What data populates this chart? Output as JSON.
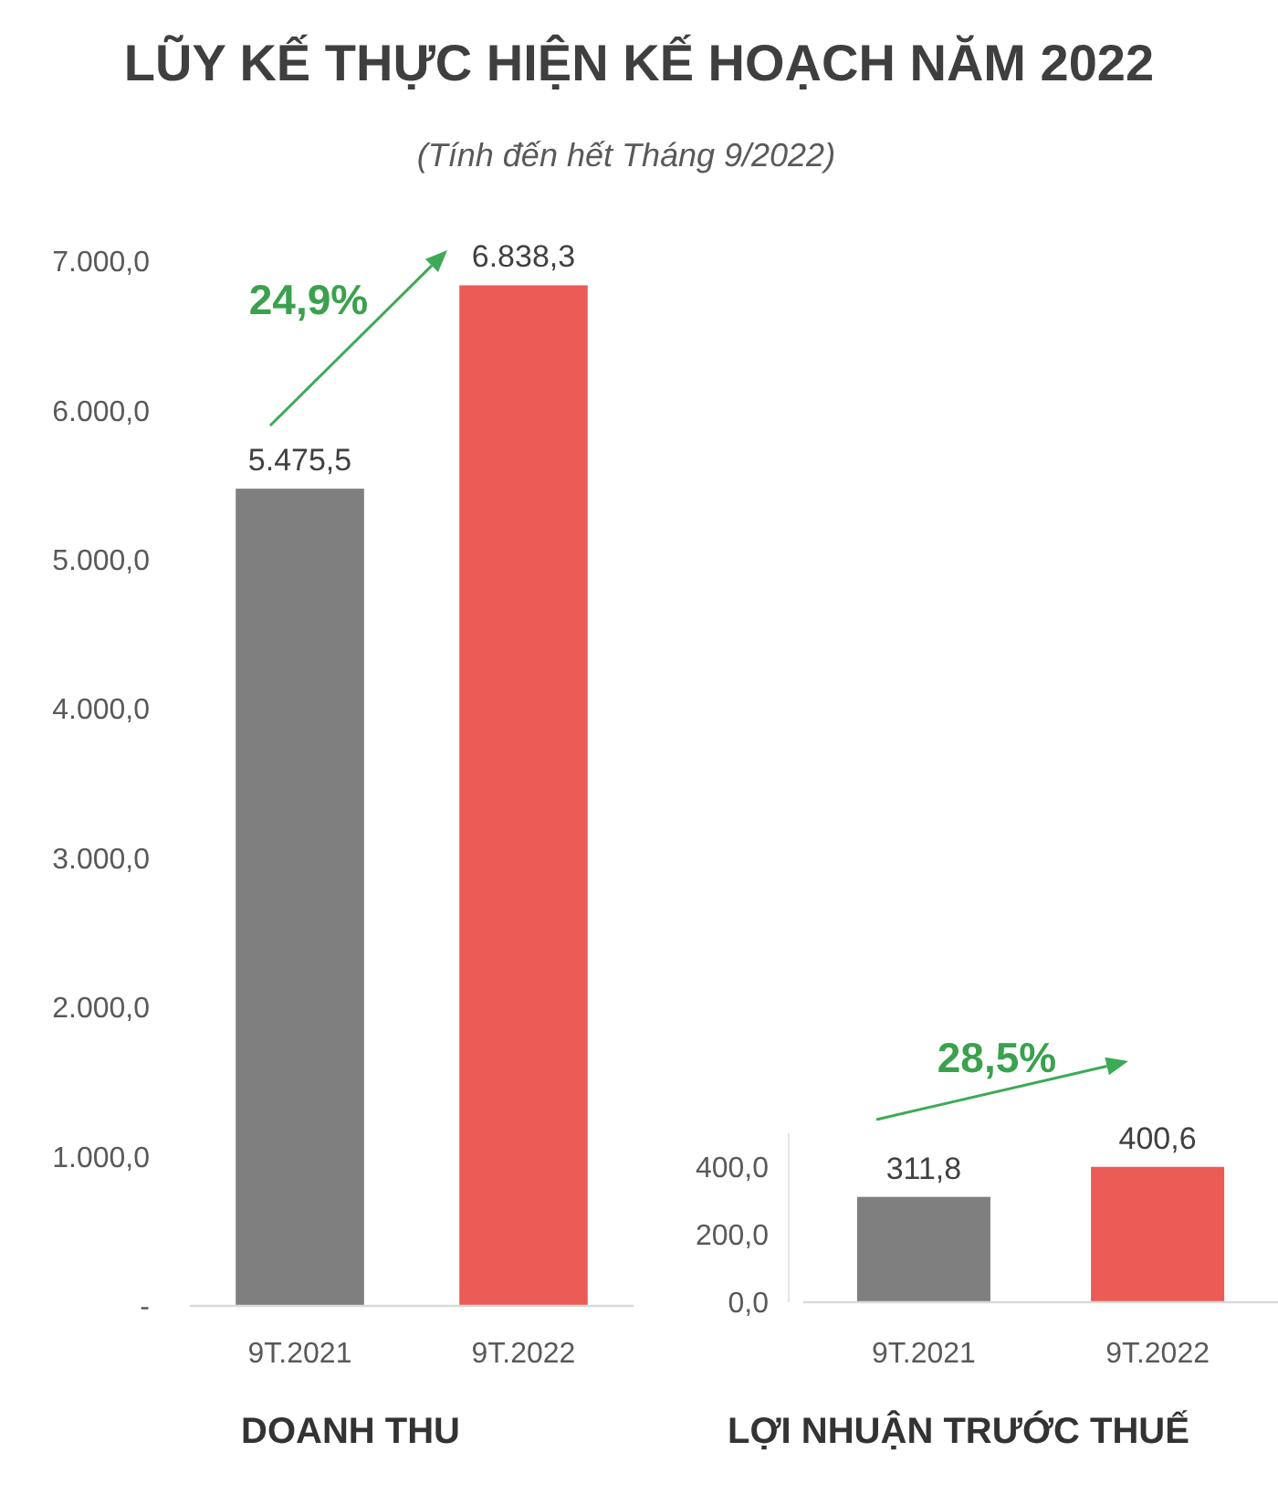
{
  "chart_data": [
    {
      "type": "bar",
      "title": "LŨY KẾ THỰC HIỆN KẾ HOẠCH NĂM 2022",
      "subtitle": "(Tính đến hết Tháng 9/2022)",
      "xlabel": "DOANH THU",
      "categories": [
        "9T.2021",
        "9T.2022"
      ],
      "values": [
        5475.5,
        6838.3
      ],
      "value_labels": [
        "5.475,5",
        "6.838,3"
      ],
      "colors": [
        "#7f7f7f",
        "#eb5c57"
      ],
      "ylim": [
        0,
        7000
      ],
      "yticks": [
        {
          "value": 0,
          "label": "-"
        },
        {
          "value": 1000,
          "label": "1.000,0"
        },
        {
          "value": 2000,
          "label": "2.000,0"
        },
        {
          "value": 3000,
          "label": "3.000,0"
        },
        {
          "value": 4000,
          "label": "4.000,0"
        },
        {
          "value": 5000,
          "label": "5.000,0"
        },
        {
          "value": 6000,
          "label": "6.000,0"
        },
        {
          "value": 7000,
          "label": "7.000,0"
        }
      ],
      "annotations": [
        "24,9%"
      ]
    },
    {
      "type": "bar",
      "xlabel": "LỢI NHUẬN TRƯỚC THUẾ",
      "categories": [
        "9T.2021",
        "9T.2022"
      ],
      "values": [
        311.8,
        400.6
      ],
      "value_labels": [
        "311,8",
        "400,6"
      ],
      "colors": [
        "#7f7f7f",
        "#eb5c57"
      ],
      "ylim": [
        0,
        500
      ],
      "yticks": [
        {
          "value": 0,
          "label": "0,0"
        },
        {
          "value": 200,
          "label": "200,0"
        },
        {
          "value": 400,
          "label": "400,0"
        }
      ],
      "annotations": [
        "28,5%"
      ]
    }
  ]
}
